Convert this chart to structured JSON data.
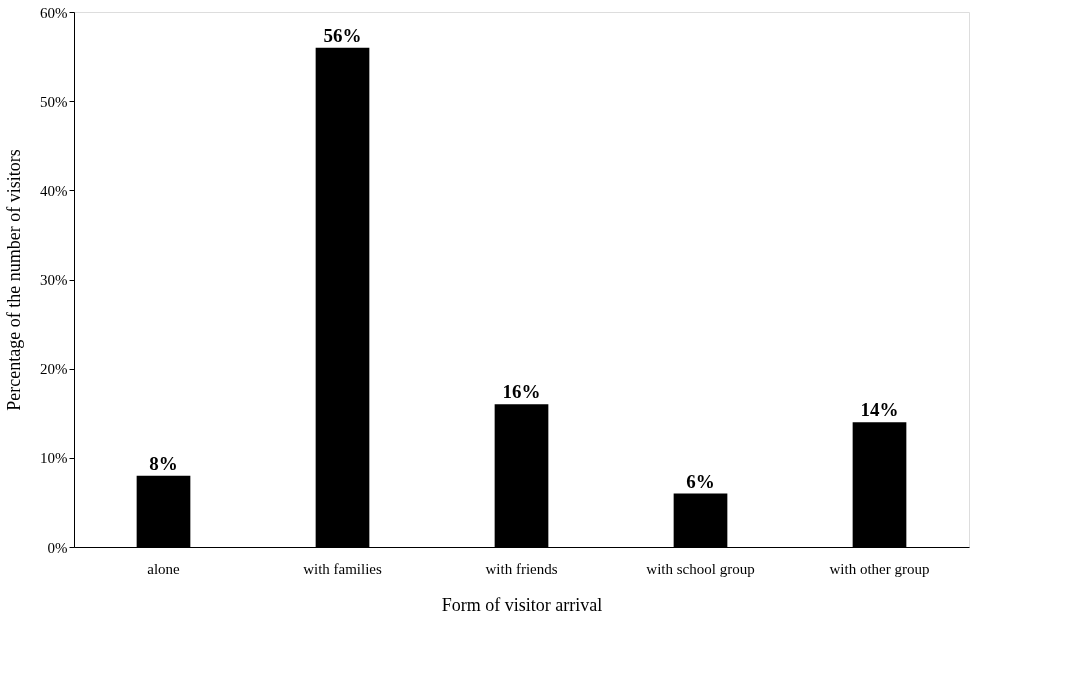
{
  "chart_data": {
    "type": "bar",
    "xlabel": "Form of visitor arrival",
    "ylabel": "Percentage of the number of visitors",
    "categories": [
      "alone",
      "with families",
      "with friends",
      "with school group",
      "with other group"
    ],
    "values": [
      8,
      56,
      16,
      6,
      14
    ],
    "value_labels": [
      "8%",
      "56%",
      "16%",
      "6%",
      "14%"
    ],
    "color": "#000000",
    "ylim": [
      0,
      60
    ],
    "yticks": [
      {
        "value": 0,
        "label": "0%"
      },
      {
        "value": 10,
        "label": "10%"
      },
      {
        "value": 20,
        "label": "20%"
      },
      {
        "value": 30,
        "label": "30%"
      },
      {
        "value": 40,
        "label": "40%"
      },
      {
        "value": 50,
        "label": "50%"
      },
      {
        "value": 60,
        "label": "60%"
      }
    ],
    "grid": false
  }
}
